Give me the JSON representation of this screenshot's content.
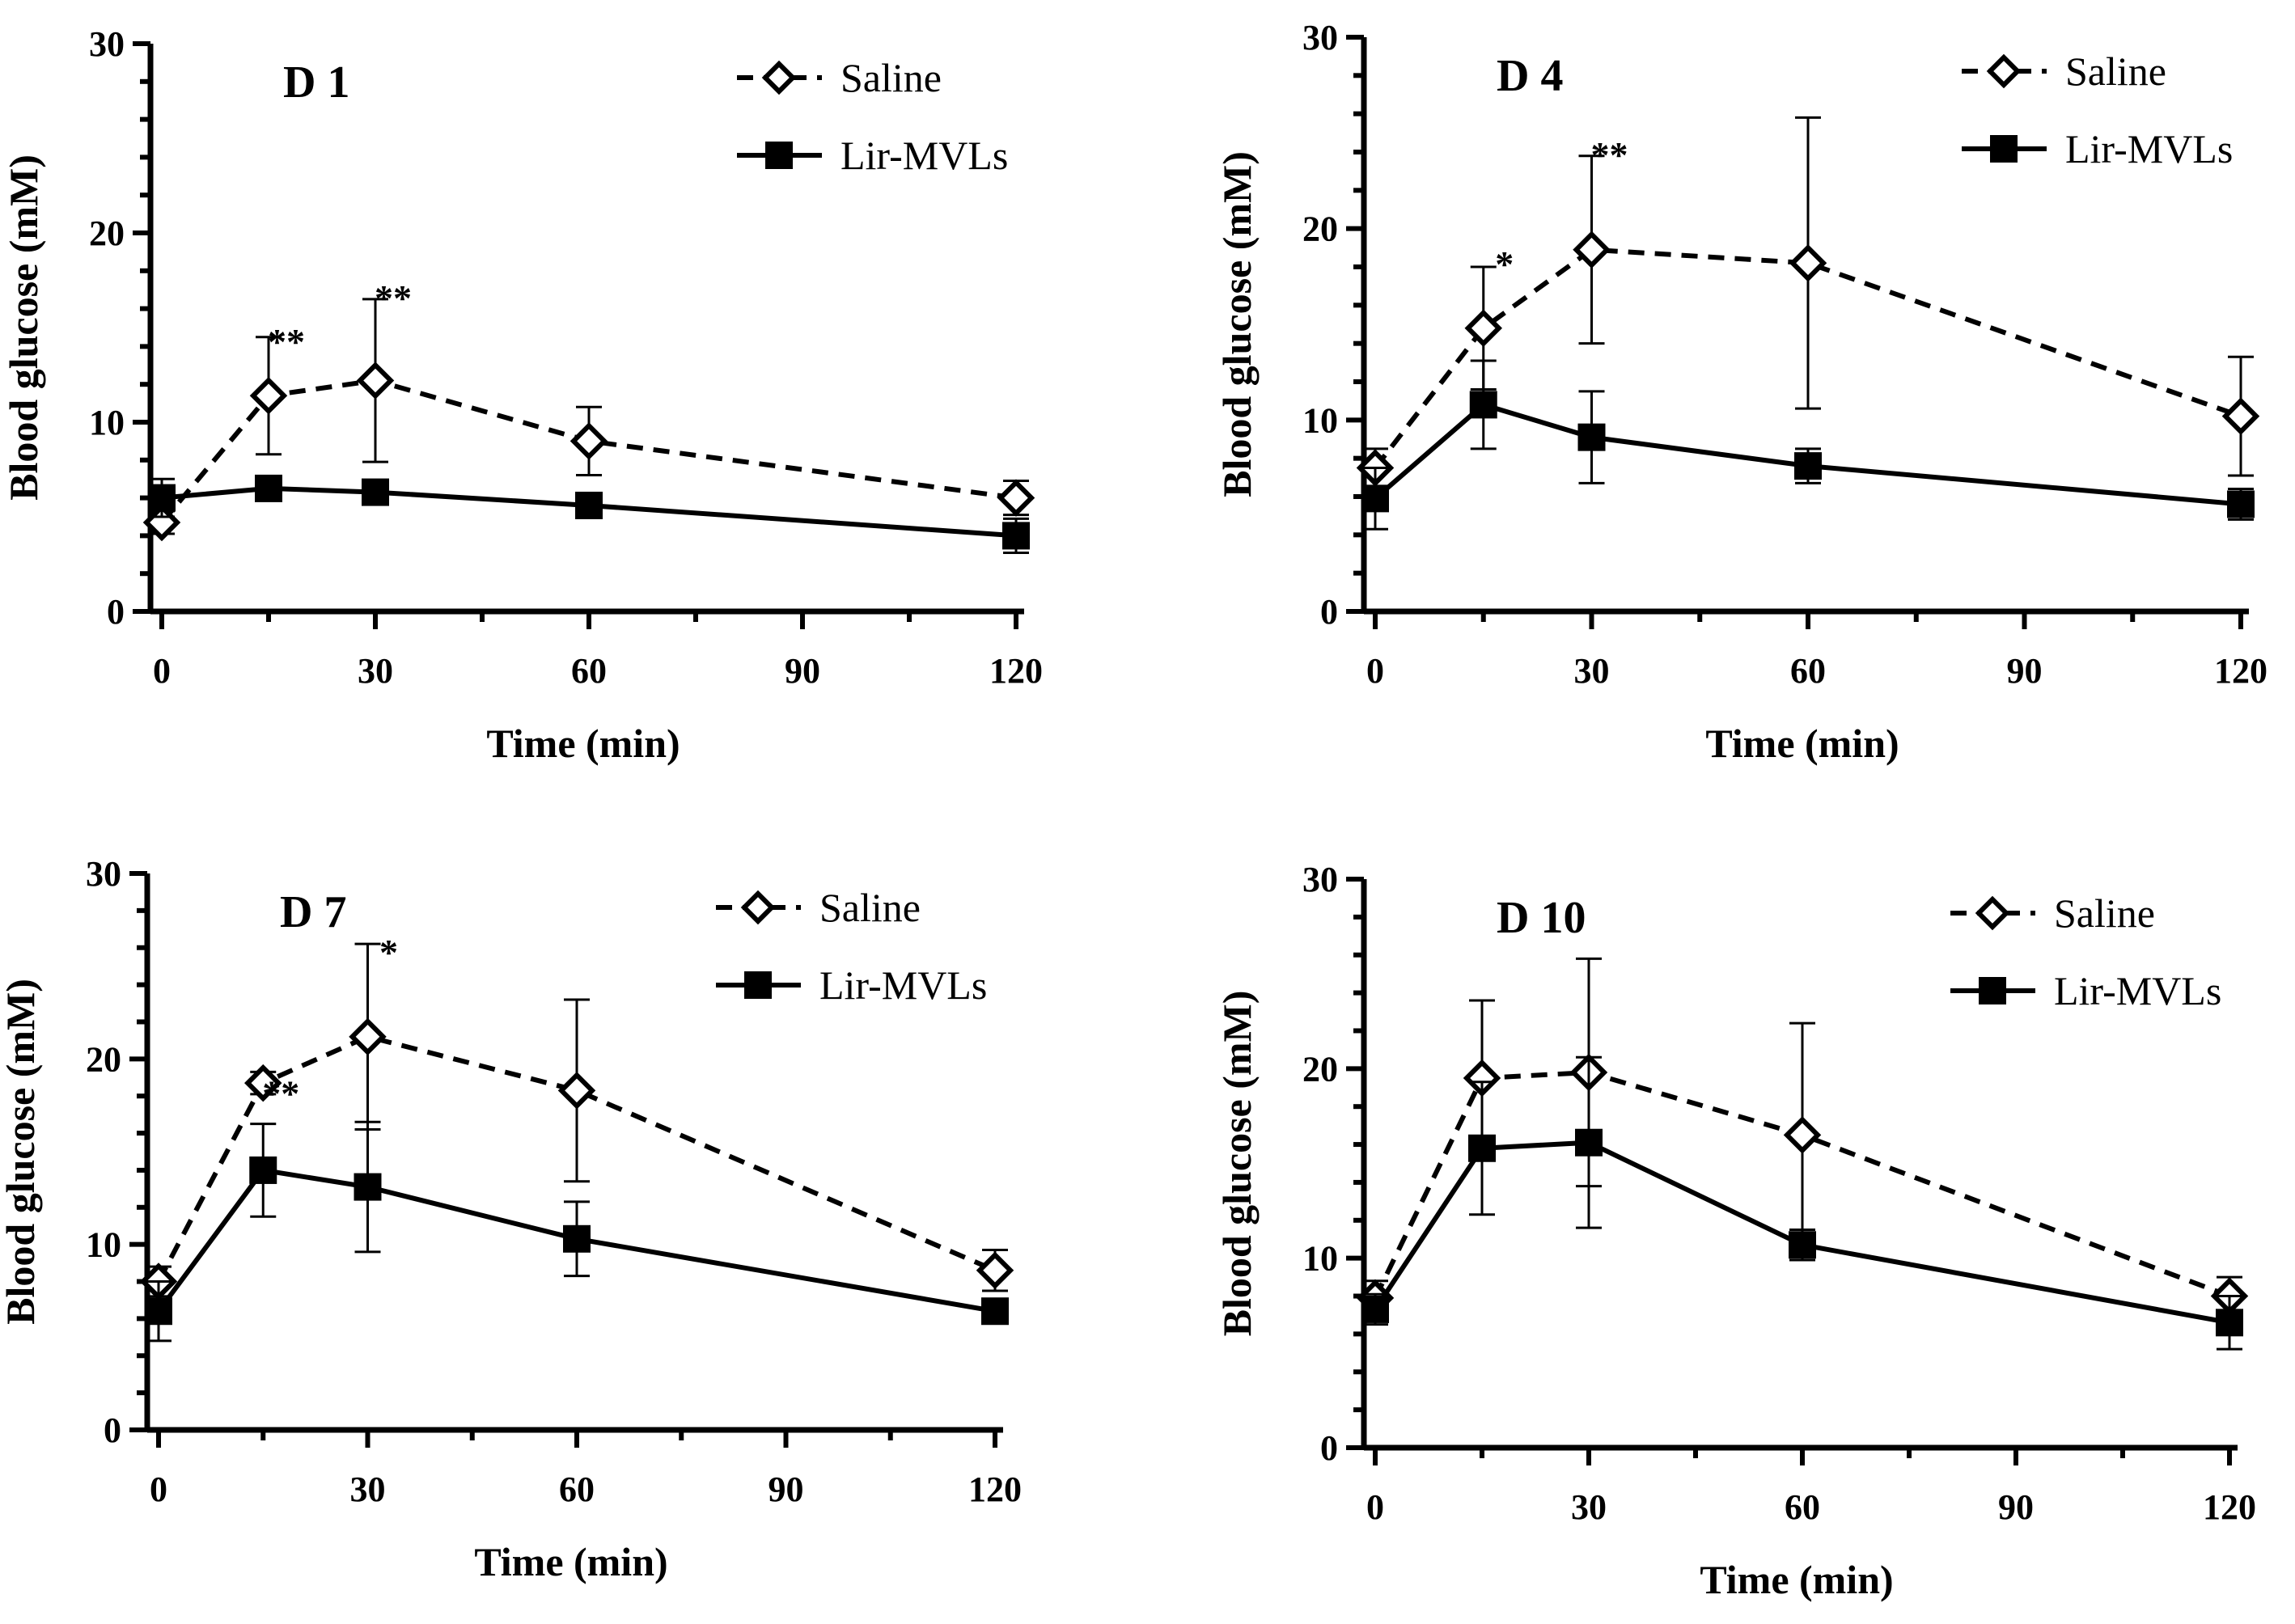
{
  "colors": {
    "line": "#000000",
    "background": "#ffffff"
  },
  "chart_data": [
    {
      "type": "line",
      "title": "D 1",
      "xlabel": "Time (min)",
      "ylabel": "Blood glucose (mM)",
      "xlim": [
        0,
        120
      ],
      "ylim": [
        0,
        30
      ],
      "xticks": [
        0,
        30,
        60,
        90,
        120
      ],
      "yticks": [
        0,
        10,
        20,
        30
      ],
      "legend_position": "top-right",
      "x": [
        0,
        15,
        30,
        60,
        120
      ],
      "series": [
        {
          "name": "Saline",
          "style": "dashed-open-diamond",
          "values": [
            4.7,
            11.4,
            12.2,
            9.0,
            6.0
          ],
          "errors": [
            0.6,
            3.1,
            4.3,
            1.8,
            0.9
          ]
        },
        {
          "name": "Lir-MVLs",
          "style": "solid-filled-square",
          "values": [
            6.0,
            6.5,
            6.3,
            5.6,
            4.0
          ],
          "errors": [
            1.0,
            0.4,
            0.5,
            0.4,
            0.9
          ]
        }
      ],
      "annotations": [
        {
          "x": 15,
          "y": 14.7,
          "text": "**"
        },
        {
          "x": 30,
          "y": 17.0,
          "text": "**"
        }
      ]
    },
    {
      "type": "line",
      "title": "D 4",
      "xlabel": "Time (min)",
      "ylabel": "Blood glucose (mM)",
      "xlim": [
        0,
        120
      ],
      "ylim": [
        0,
        30
      ],
      "xticks": [
        0,
        30,
        60,
        90,
        120
      ],
      "yticks": [
        0,
        10,
        20,
        30
      ],
      "legend_position": "top-right",
      "x": [
        0,
        15,
        30,
        60,
        120
      ],
      "series": [
        {
          "name": "Saline",
          "style": "dashed-open-diamond",
          "values": [
            7.5,
            14.8,
            18.9,
            18.2,
            10.2
          ],
          "errors": [
            1.0,
            3.2,
            4.9,
            7.6,
            3.1
          ]
        },
        {
          "name": "Lir-MVLs",
          "style": "solid-filled-square",
          "values": [
            5.9,
            10.8,
            9.1,
            7.6,
            5.6
          ],
          "errors": [
            1.6,
            2.3,
            2.4,
            0.9,
            0.8
          ]
        }
      ],
      "annotations": [
        {
          "x": 15,
          "y": 18.6,
          "text": "*"
        },
        {
          "x": 30,
          "y": 24.3,
          "text": "**"
        }
      ]
    },
    {
      "type": "line",
      "title": "D 7",
      "xlabel": "Time (min)",
      "ylabel": "Blood glucose (mM)",
      "xlim": [
        0,
        120
      ],
      "ylim": [
        0,
        30
      ],
      "xticks": [
        0,
        30,
        60,
        90,
        120
      ],
      "yticks": [
        0,
        10,
        20,
        30
      ],
      "legend_position": "top-right",
      "x": [
        0,
        15,
        30,
        60,
        120
      ],
      "series": [
        {
          "name": "Saline",
          "style": "dashed-open-diamond",
          "values": [
            8.0,
            18.7,
            21.2,
            18.3,
            8.6
          ],
          "errors": [
            0.8,
            0.6,
            5.0,
            4.9,
            1.1
          ]
        },
        {
          "name": "Lir-MVLs",
          "style": "solid-filled-square",
          "values": [
            6.4,
            14.0,
            13.1,
            10.3,
            6.4
          ],
          "errors": [
            1.6,
            2.5,
            3.5,
            2.0,
            0.5
          ]
        }
      ],
      "annotations": [
        {
          "x": 15,
          "y": 18.6,
          "text": "**"
        },
        {
          "x": 30,
          "y": 26.2,
          "text": "*"
        }
      ]
    },
    {
      "type": "line",
      "title": "D 10",
      "xlabel": "Time (min)",
      "ylabel": "Blood glucose (mM)",
      "xlim": [
        0,
        120
      ],
      "ylim": [
        0,
        30
      ],
      "xticks": [
        0,
        30,
        60,
        90,
        120
      ],
      "yticks": [
        0,
        10,
        20,
        30
      ],
      "legend_position": "top-right",
      "x": [
        0,
        15,
        30,
        60,
        120
      ],
      "series": [
        {
          "name": "Saline",
          "style": "dashed-open-diamond",
          "values": [
            7.9,
            19.5,
            19.8,
            16.5,
            8.0
          ],
          "errors": [
            0.9,
            4.1,
            6.0,
            5.9,
            1.0
          ]
        },
        {
          "name": "Lir-MVLs",
          "style": "solid-filled-square",
          "values": [
            7.3,
            15.8,
            16.1,
            10.7,
            6.6
          ],
          "errors": [
            0.8,
            3.5,
            4.5,
            0.8,
            1.4
          ]
        }
      ],
      "annotations": []
    }
  ]
}
